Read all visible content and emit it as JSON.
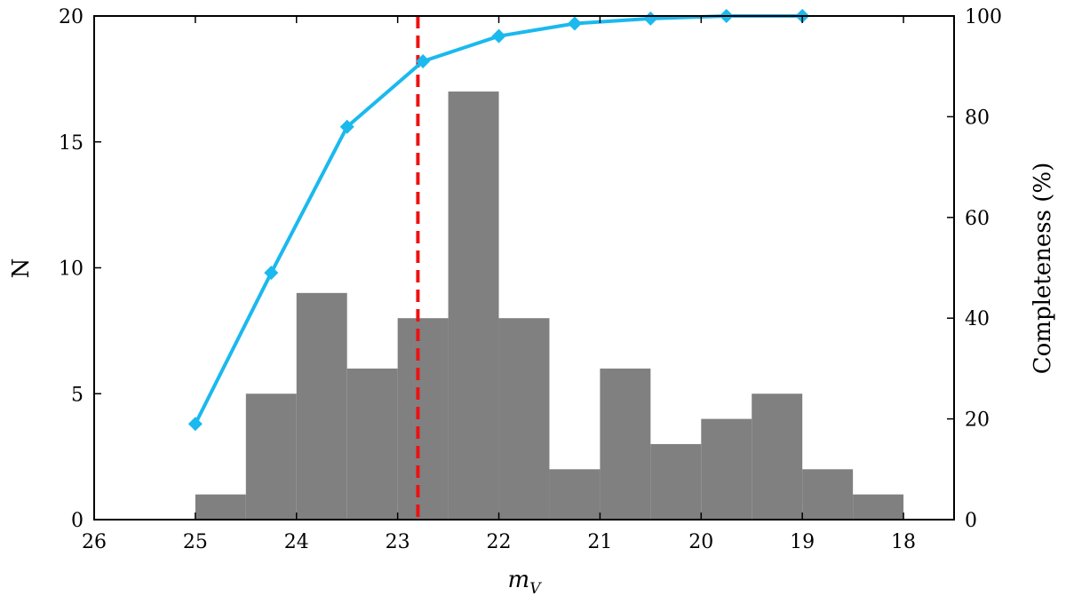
{
  "chart_data": {
    "type": "bar",
    "title": "",
    "xlabel": "m",
    "xlabel_subscript": "V",
    "ylabel": "N",
    "y2label": "Completeness (%)",
    "xlim": [
      26,
      17.5
    ],
    "ylim": [
      0,
      20
    ],
    "y2lim": [
      0,
      100
    ],
    "x_inverted": true,
    "xticks": [
      26,
      25,
      24,
      23,
      22,
      21,
      20,
      19,
      18
    ],
    "yticks": [
      0,
      5,
      10,
      15,
      20
    ],
    "y2ticks": [
      0,
      20,
      40,
      60,
      80,
      100
    ],
    "histogram": {
      "bin_edges": [
        25.0,
        24.5,
        24.0,
        23.5,
        23.0,
        22.5,
        22.0,
        21.5,
        21.0,
        20.5,
        20.0,
        19.5,
        19.0,
        18.5,
        18.0
      ],
      "counts": [
        1,
        5,
        9,
        6,
        8,
        17,
        8,
        2,
        6,
        3,
        4,
        5,
        2,
        1
      ],
      "color": "#808080"
    },
    "completeness": {
      "x": [
        25.0,
        24.25,
        23.5,
        22.75,
        22.0,
        21.25,
        20.5,
        19.75,
        19.0
      ],
      "y": [
        19,
        49,
        78,
        91,
        96,
        98.5,
        99.5,
        100,
        100
      ],
      "color": "#1ab9ee",
      "marker": "diamond"
    },
    "limit_line": {
      "x": 22.8,
      "color": "#ee1111",
      "style": "dashed"
    },
    "grid": false
  }
}
